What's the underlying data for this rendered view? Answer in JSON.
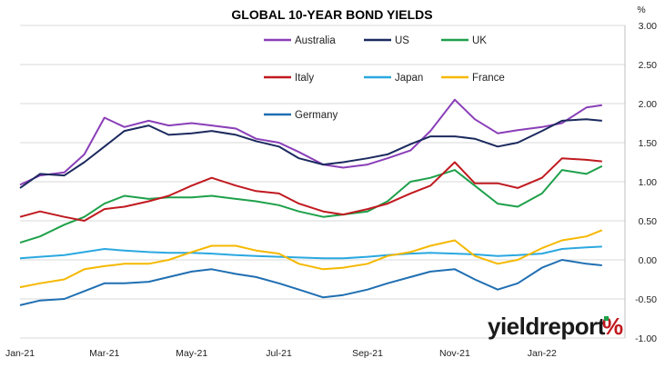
{
  "chart_data": {
    "type": "line",
    "title": "GLOBAL 10-YEAR BOND YIELDS",
    "ylabel": "%",
    "ylim": [
      -1.0,
      3.0
    ],
    "yticks": [
      "3.00",
      "2.50",
      "2.00",
      "1.50",
      "1.00",
      "0.50",
      "0.00",
      "-0.50",
      "-1.00"
    ],
    "xlim": [
      "2021-01-01",
      "2022-02-28"
    ],
    "xticks": [
      {
        "label": "Jan-21",
        "date": "2021-01-01"
      },
      {
        "label": "Mar-21",
        "date": "2021-03-01"
      },
      {
        "label": "May-21",
        "date": "2021-05-01"
      },
      {
        "label": "Jul-21",
        "date": "2021-07-01"
      },
      {
        "label": "Sep-21",
        "date": "2021-09-01"
      },
      {
        "label": "Nov-21",
        "date": "2021-11-01"
      },
      {
        "label": "Jan-22",
        "date": "2022-01-01"
      }
    ],
    "grid": "horizontal",
    "legend_position": "top",
    "series": [
      {
        "name": "Australia",
        "color": "#8a3fb8",
        "points": [
          [
            "2021-01-01",
            0.96
          ],
          [
            "2021-01-15",
            1.08
          ],
          [
            "2021-02-01",
            1.12
          ],
          [
            "2021-02-15",
            1.35
          ],
          [
            "2021-03-01",
            1.82
          ],
          [
            "2021-03-15",
            1.7
          ],
          [
            "2021-04-01",
            1.78
          ],
          [
            "2021-04-15",
            1.72
          ],
          [
            "2021-05-01",
            1.75
          ],
          [
            "2021-05-15",
            1.72
          ],
          [
            "2021-06-01",
            1.68
          ],
          [
            "2021-06-15",
            1.55
          ],
          [
            "2021-07-01",
            1.5
          ],
          [
            "2021-07-15",
            1.38
          ],
          [
            "2021-08-01",
            1.22
          ],
          [
            "2021-08-15",
            1.18
          ],
          [
            "2021-09-01",
            1.22
          ],
          [
            "2021-09-15",
            1.3
          ],
          [
            "2021-10-01",
            1.4
          ],
          [
            "2021-10-15",
            1.65
          ],
          [
            "2021-11-01",
            2.05
          ],
          [
            "2021-11-15",
            1.8
          ],
          [
            "2021-12-01",
            1.62
          ],
          [
            "2021-12-15",
            1.66
          ],
          [
            "2022-01-01",
            1.7
          ],
          [
            "2022-01-15",
            1.75
          ],
          [
            "2022-02-01",
            1.95
          ],
          [
            "2022-02-12",
            1.98
          ]
        ]
      },
      {
        "name": "US",
        "color": "#1b2a5e",
        "points": [
          [
            "2021-01-01",
            0.92
          ],
          [
            "2021-01-15",
            1.1
          ],
          [
            "2021-02-01",
            1.08
          ],
          [
            "2021-02-15",
            1.25
          ],
          [
            "2021-03-01",
            1.45
          ],
          [
            "2021-03-15",
            1.65
          ],
          [
            "2021-04-01",
            1.72
          ],
          [
            "2021-04-15",
            1.6
          ],
          [
            "2021-05-01",
            1.62
          ],
          [
            "2021-05-15",
            1.65
          ],
          [
            "2021-06-01",
            1.6
          ],
          [
            "2021-06-15",
            1.52
          ],
          [
            "2021-07-01",
            1.45
          ],
          [
            "2021-07-15",
            1.3
          ],
          [
            "2021-08-01",
            1.22
          ],
          [
            "2021-08-15",
            1.25
          ],
          [
            "2021-09-01",
            1.3
          ],
          [
            "2021-09-15",
            1.35
          ],
          [
            "2021-10-01",
            1.48
          ],
          [
            "2021-10-15",
            1.58
          ],
          [
            "2021-11-01",
            1.58
          ],
          [
            "2021-11-15",
            1.55
          ],
          [
            "2021-12-01",
            1.45
          ],
          [
            "2021-12-15",
            1.5
          ],
          [
            "2022-01-01",
            1.65
          ],
          [
            "2022-01-15",
            1.78
          ],
          [
            "2022-02-01",
            1.8
          ],
          [
            "2022-02-12",
            1.78
          ]
        ]
      },
      {
        "name": "UK",
        "color": "#1ea04a",
        "points": [
          [
            "2021-01-01",
            0.22
          ],
          [
            "2021-01-15",
            0.3
          ],
          [
            "2021-02-01",
            0.45
          ],
          [
            "2021-02-15",
            0.55
          ],
          [
            "2021-03-01",
            0.72
          ],
          [
            "2021-03-15",
            0.82
          ],
          [
            "2021-04-01",
            0.78
          ],
          [
            "2021-04-15",
            0.8
          ],
          [
            "2021-05-01",
            0.8
          ],
          [
            "2021-05-15",
            0.82
          ],
          [
            "2021-06-01",
            0.78
          ],
          [
            "2021-06-15",
            0.75
          ],
          [
            "2021-07-01",
            0.7
          ],
          [
            "2021-07-15",
            0.62
          ],
          [
            "2021-08-01",
            0.55
          ],
          [
            "2021-08-15",
            0.58
          ],
          [
            "2021-09-01",
            0.62
          ],
          [
            "2021-09-15",
            0.75
          ],
          [
            "2021-10-01",
            1.0
          ],
          [
            "2021-10-15",
            1.05
          ],
          [
            "2021-11-01",
            1.15
          ],
          [
            "2021-11-15",
            0.95
          ],
          [
            "2021-12-01",
            0.72
          ],
          [
            "2021-12-15",
            0.68
          ],
          [
            "2022-01-01",
            0.85
          ],
          [
            "2022-01-15",
            1.15
          ],
          [
            "2022-02-01",
            1.1
          ],
          [
            "2022-02-12",
            1.2
          ]
        ]
      },
      {
        "name": "Italy",
        "color": "#c0191f",
        "points": [
          [
            "2021-01-01",
            0.55
          ],
          [
            "2021-01-15",
            0.62
          ],
          [
            "2021-02-01",
            0.55
          ],
          [
            "2021-02-15",
            0.5
          ],
          [
            "2021-03-01",
            0.65
          ],
          [
            "2021-03-15",
            0.68
          ],
          [
            "2021-04-01",
            0.75
          ],
          [
            "2021-04-15",
            0.82
          ],
          [
            "2021-05-01",
            0.95
          ],
          [
            "2021-05-15",
            1.05
          ],
          [
            "2021-06-01",
            0.95
          ],
          [
            "2021-06-15",
            0.88
          ],
          [
            "2021-07-01",
            0.85
          ],
          [
            "2021-07-15",
            0.72
          ],
          [
            "2021-08-01",
            0.62
          ],
          [
            "2021-08-15",
            0.58
          ],
          [
            "2021-09-01",
            0.65
          ],
          [
            "2021-09-15",
            0.72
          ],
          [
            "2021-10-01",
            0.85
          ],
          [
            "2021-10-15",
            0.95
          ],
          [
            "2021-11-01",
            1.25
          ],
          [
            "2021-11-15",
            0.98
          ],
          [
            "2021-12-01",
            0.98
          ],
          [
            "2021-12-15",
            0.92
          ],
          [
            "2022-01-01",
            1.05
          ],
          [
            "2022-01-15",
            1.3
          ],
          [
            "2022-02-01",
            1.28
          ],
          [
            "2022-02-12",
            1.26
          ]
        ]
      },
      {
        "name": "Japan",
        "color": "#2aa8e0",
        "points": [
          [
            "2021-01-01",
            0.02
          ],
          [
            "2021-01-15",
            0.04
          ],
          [
            "2021-02-01",
            0.06
          ],
          [
            "2021-02-15",
            0.1
          ],
          [
            "2021-03-01",
            0.14
          ],
          [
            "2021-03-15",
            0.12
          ],
          [
            "2021-04-01",
            0.1
          ],
          [
            "2021-04-15",
            0.09
          ],
          [
            "2021-05-01",
            0.09
          ],
          [
            "2021-05-15",
            0.08
          ],
          [
            "2021-06-01",
            0.06
          ],
          [
            "2021-06-15",
            0.05
          ],
          [
            "2021-07-01",
            0.04
          ],
          [
            "2021-07-15",
            0.03
          ],
          [
            "2021-08-01",
            0.02
          ],
          [
            "2021-08-15",
            0.02
          ],
          [
            "2021-09-01",
            0.04
          ],
          [
            "2021-09-15",
            0.06
          ],
          [
            "2021-10-01",
            0.08
          ],
          [
            "2021-10-15",
            0.09
          ],
          [
            "2021-11-01",
            0.08
          ],
          [
            "2021-11-15",
            0.07
          ],
          [
            "2021-12-01",
            0.05
          ],
          [
            "2021-12-15",
            0.06
          ],
          [
            "2022-01-01",
            0.08
          ],
          [
            "2022-01-15",
            0.14
          ],
          [
            "2022-02-01",
            0.16
          ],
          [
            "2022-02-12",
            0.17
          ]
        ]
      },
      {
        "name": "France",
        "color": "#f5b800",
        "points": [
          [
            "2021-01-01",
            -0.35
          ],
          [
            "2021-01-15",
            -0.3
          ],
          [
            "2021-02-01",
            -0.25
          ],
          [
            "2021-02-15",
            -0.12
          ],
          [
            "2021-03-01",
            -0.08
          ],
          [
            "2021-03-15",
            -0.05
          ],
          [
            "2021-04-01",
            -0.05
          ],
          [
            "2021-04-15",
            0.0
          ],
          [
            "2021-05-01",
            0.1
          ],
          [
            "2021-05-15",
            0.18
          ],
          [
            "2021-06-01",
            0.18
          ],
          [
            "2021-06-15",
            0.12
          ],
          [
            "2021-07-01",
            0.08
          ],
          [
            "2021-07-15",
            -0.05
          ],
          [
            "2021-08-01",
            -0.12
          ],
          [
            "2021-08-15",
            -0.1
          ],
          [
            "2021-09-01",
            -0.05
          ],
          [
            "2021-09-15",
            0.05
          ],
          [
            "2021-10-01",
            0.1
          ],
          [
            "2021-10-15",
            0.18
          ],
          [
            "2021-11-01",
            0.25
          ],
          [
            "2021-11-15",
            0.05
          ],
          [
            "2021-12-01",
            -0.05
          ],
          [
            "2021-12-15",
            0.0
          ],
          [
            "2022-01-01",
            0.15
          ],
          [
            "2022-01-15",
            0.25
          ],
          [
            "2022-02-01",
            0.3
          ],
          [
            "2022-02-12",
            0.38
          ]
        ]
      },
      {
        "name": "Germany",
        "color": "#1f6fb2",
        "points": [
          [
            "2021-01-01",
            -0.58
          ],
          [
            "2021-01-15",
            -0.52
          ],
          [
            "2021-02-01",
            -0.5
          ],
          [
            "2021-02-15",
            -0.4
          ],
          [
            "2021-03-01",
            -0.3
          ],
          [
            "2021-03-15",
            -0.3
          ],
          [
            "2021-04-01",
            -0.28
          ],
          [
            "2021-04-15",
            -0.22
          ],
          [
            "2021-05-01",
            -0.15
          ],
          [
            "2021-05-15",
            -0.12
          ],
          [
            "2021-06-01",
            -0.18
          ],
          [
            "2021-06-15",
            -0.22
          ],
          [
            "2021-07-01",
            -0.3
          ],
          [
            "2021-07-15",
            -0.38
          ],
          [
            "2021-08-01",
            -0.48
          ],
          [
            "2021-08-15",
            -0.45
          ],
          [
            "2021-09-01",
            -0.38
          ],
          [
            "2021-09-15",
            -0.3
          ],
          [
            "2021-10-01",
            -0.22
          ],
          [
            "2021-10-15",
            -0.15
          ],
          [
            "2021-11-01",
            -0.12
          ],
          [
            "2021-11-15",
            -0.25
          ],
          [
            "2021-12-01",
            -0.38
          ],
          [
            "2021-12-15",
            -0.3
          ],
          [
            "2022-01-01",
            -0.1
          ],
          [
            "2022-01-15",
            0.0
          ],
          [
            "2022-02-01",
            -0.05
          ],
          [
            "2022-02-12",
            -0.07
          ]
        ]
      }
    ],
    "legend": [
      {
        "name": "Australia",
        "color": "#8a3fb8"
      },
      {
        "name": "US",
        "color": "#1b2a5e"
      },
      {
        "name": "UK",
        "color": "#1ea04a"
      },
      {
        "name": "Italy",
        "color": "#c0191f"
      },
      {
        "name": "Japan",
        "color": "#2aa8e0"
      },
      {
        "name": "France",
        "color": "#f5b800"
      },
      {
        "name": "Germany",
        "color": "#1f6fb2"
      }
    ]
  },
  "branding": {
    "name": "yieldreport",
    "pct": "%",
    "accent_colors": [
      "#1ea04a",
      "#c0191f"
    ]
  }
}
